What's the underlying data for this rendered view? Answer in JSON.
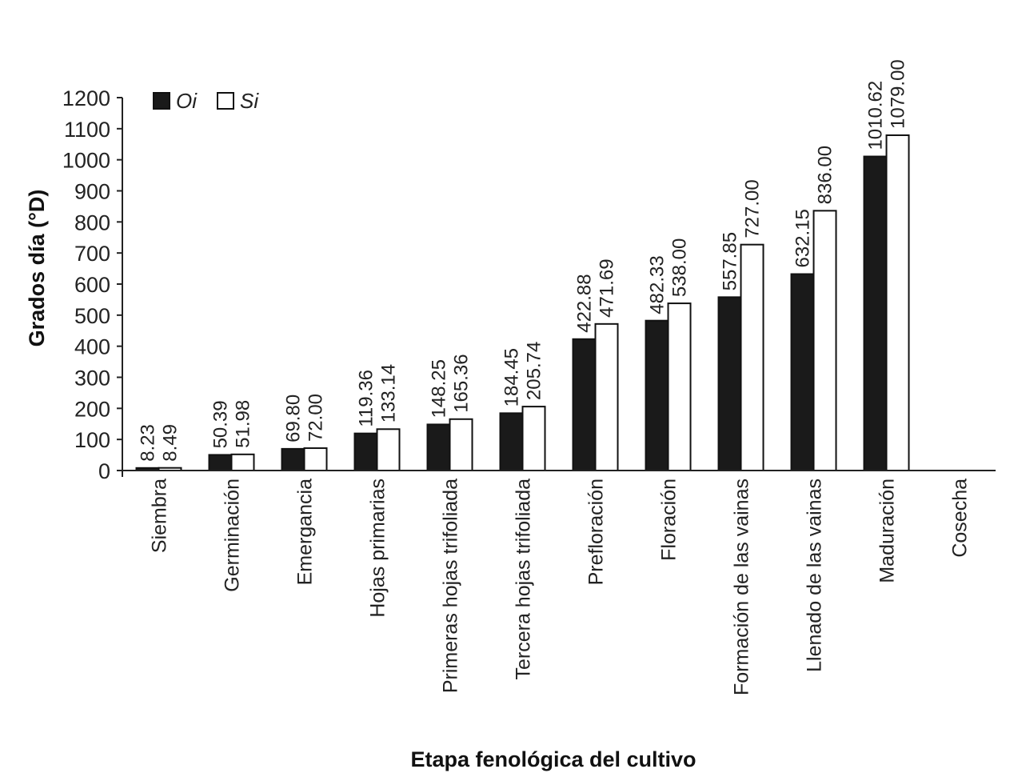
{
  "chart_data": {
    "type": "bar",
    "title": "",
    "xlabel": "Etapa fenológica del cultivo",
    "ylabel": "Grados día (°D)",
    "ylim": [
      0,
      1200
    ],
    "yticks": [
      0,
      100,
      200,
      300,
      400,
      500,
      600,
      700,
      800,
      900,
      1000,
      1100,
      1200
    ],
    "grid": false,
    "legend_position": "top-left",
    "categories": [
      "Siembra",
      "Germinación",
      "Emergancia",
      "Hojas primarias",
      "Primeras hojas trifoliada",
      "Tercera hojas trifoliada",
      "Prefloración",
      "Floración",
      "Formación de las vainas",
      "Llenado de las vainas",
      "Maduración",
      "Cosecha"
    ],
    "series": [
      {
        "name": "Oi",
        "color": "#1a1a1a",
        "values": [
          8.23,
          50.39,
          69.8,
          119.36,
          148.25,
          184.45,
          422.88,
          482.33,
          557.85,
          632.15,
          1010.62,
          null
        ],
        "labels": [
          "8.23",
          "50.39",
          "69.80",
          "119.36",
          "148.25",
          "184.45",
          "422.88",
          "482.33",
          "557.85",
          "632.15",
          "1010.62",
          ""
        ]
      },
      {
        "name": "Si",
        "color": "#ffffff",
        "values": [
          8.49,
          51.98,
          72.0,
          133.14,
          165.36,
          205.74,
          471.69,
          538.0,
          727.0,
          836.0,
          1079.0,
          null
        ],
        "labels": [
          "8.49",
          "51.98",
          "72.00",
          "133.14",
          "165.36",
          "205.74",
          "471.69",
          "538.00",
          "727.00",
          "836.00",
          "1079.00",
          ""
        ]
      }
    ]
  }
}
